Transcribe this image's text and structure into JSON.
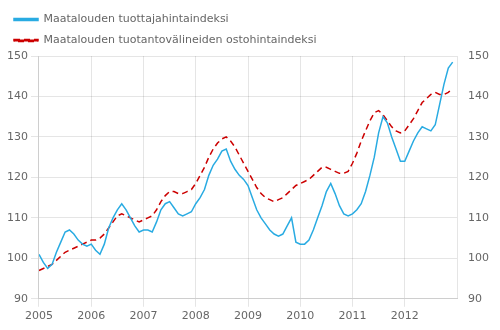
{
  "chart_data": {
    "type": "line",
    "x": [
      2005,
      2005.0833333333333,
      2005.1666666666667,
      2005.25,
      2005.3333333333333,
      2005.4166666666667,
      2005.5,
      2005.5833333333333,
      2005.6666666666667,
      2005.75,
      2005.8333333333333,
      2005.9166666666667,
      2006,
      2006.0833333333333,
      2006.1666666666667,
      2006.25,
      2006.3333333333333,
      2006.4166666666667,
      2006.5,
      2006.5833333333333,
      2006.6666666666667,
      2006.75,
      2006.8333333333333,
      2006.9166666666667,
      2007,
      2007.0833333333333,
      2007.1666666666667,
      2007.25,
      2007.3333333333333,
      2007.4166666666667,
      2007.5,
      2007.5833333333333,
      2007.6666666666667,
      2007.75,
      2007.8333333333333,
      2007.9166666666667,
      2008,
      2008.0833333333333,
      2008.1666666666667,
      2008.25,
      2008.3333333333333,
      2008.4166666666667,
      2008.5,
      2008.5833333333333,
      2008.6666666666667,
      2008.75,
      2008.8333333333333,
      2008.9166666666667,
      2009,
      2009.0833333333333,
      2009.1666666666667,
      2009.25,
      2009.3333333333333,
      2009.4166666666667,
      2009.5,
      2009.5833333333333,
      2009.6666666666667,
      2009.75,
      2009.8333333333333,
      2009.9166666666667,
      2010,
      2010.0833333333333,
      2010.1666666666667,
      2010.25,
      2010.3333333333333,
      2010.4166666666667,
      2010.5,
      2010.5833333333333,
      2010.6666666666667,
      2010.75,
      2010.8333333333333,
      2010.9166666666667,
      2011,
      2011.0833333333333,
      2011.1666666666667,
      2011.25,
      2011.3333333333333,
      2011.4166666666667,
      2011.5,
      2011.5833333333333,
      2011.6666666666667,
      2011.75,
      2011.8333333333333,
      2011.9166666666667,
      2012,
      2012.0833333333333,
      2012.1666666666667,
      2012.25,
      2012.3333333333333,
      2012.4166666666667,
      2012.5,
      2012.5833333333333,
      2012.6666666666667,
      2012.75,
      2012.8333333333333,
      2012.9166666666667
    ],
    "series": [
      {
        "name": "Maatalouden tuottajahintaindeksi",
        "color": "#29ABE2",
        "line_style": "solid",
        "values": [
          101.0,
          99.0,
          97.5,
          98.5,
          101.5,
          104.0,
          106.5,
          107.0,
          106.0,
          104.5,
          103.5,
          103.0,
          103.5,
          102.0,
          101.0,
          103.5,
          107.5,
          110.0,
          112.0,
          113.5,
          112.0,
          110.0,
          108.0,
          106.5,
          107.0,
          107.0,
          106.5,
          109.0,
          112.0,
          113.5,
          114.0,
          112.5,
          111.0,
          110.5,
          111.0,
          111.5,
          113.5,
          115.0,
          117.0,
          120.5,
          123.0,
          124.5,
          126.5,
          127.0,
          124.0,
          122.0,
          120.5,
          119.5,
          118.0,
          115.0,
          112.0,
          110.0,
          108.5,
          107.0,
          106.0,
          105.5,
          106.0,
          108.0,
          110.0,
          104.0,
          103.5,
          103.5,
          104.5,
          107.0,
          110.0,
          113.0,
          116.5,
          118.5,
          116.0,
          113.0,
          111.0,
          110.5,
          111.0,
          112.0,
          113.5,
          116.5,
          120.5,
          125.0,
          131.0,
          135.0,
          133.5,
          130.0,
          127.0,
          124.0,
          124.0,
          126.5,
          129.0,
          131.0,
          132.5,
          132.0,
          131.5,
          133.0,
          138.0,
          143.0,
          147.0,
          148.5
        ]
      },
      {
        "name": "Maatalouden tuotantovälineiden ostohintaindeksi",
        "color": "#CC0000",
        "line_style": "dashed",
        "values": [
          97.0,
          97.5,
          98.0,
          98.5,
          99.5,
          100.5,
          101.5,
          102.0,
          102.5,
          103.0,
          103.5,
          104.0,
          104.5,
          104.5,
          105.0,
          106.0,
          107.5,
          109.0,
          110.5,
          111.0,
          110.5,
          110.0,
          109.5,
          109.0,
          109.5,
          110.0,
          110.5,
          112.0,
          114.0,
          115.5,
          116.5,
          116.5,
          116.0,
          116.0,
          116.5,
          117.0,
          118.5,
          120.5,
          122.5,
          125.0,
          127.0,
          128.5,
          129.5,
          130.0,
          129.0,
          127.5,
          125.5,
          123.5,
          121.5,
          119.5,
          117.5,
          116.0,
          115.0,
          114.5,
          114.0,
          114.5,
          115.0,
          116.0,
          117.0,
          118.0,
          118.5,
          119.0,
          119.5,
          120.5,
          121.5,
          122.5,
          122.5,
          122.0,
          121.5,
          121.0,
          121.0,
          121.5,
          123.5,
          126.0,
          129.0,
          131.5,
          134.0,
          136.0,
          136.5,
          135.5,
          134.0,
          132.5,
          131.5,
          131.0,
          131.5,
          133.0,
          134.5,
          136.5,
          138.5,
          139.5,
          140.5,
          141.0,
          140.5,
          140.5,
          141.0,
          142.0
        ]
      }
    ],
    "xlim": [
      2005,
      2013
    ],
    "xticks": [
      2005,
      2006,
      2007,
      2008,
      2009,
      2010,
      2011,
      2012
    ],
    "ylim": [
      90,
      150
    ],
    "yticks": [
      90,
      100,
      110,
      120,
      130,
      140,
      150
    ],
    "y2lim": [
      90,
      150
    ],
    "y2ticks": [
      90,
      100,
      110,
      120,
      130,
      140,
      150
    ],
    "grid": true,
    "legend": "upper left"
  }
}
